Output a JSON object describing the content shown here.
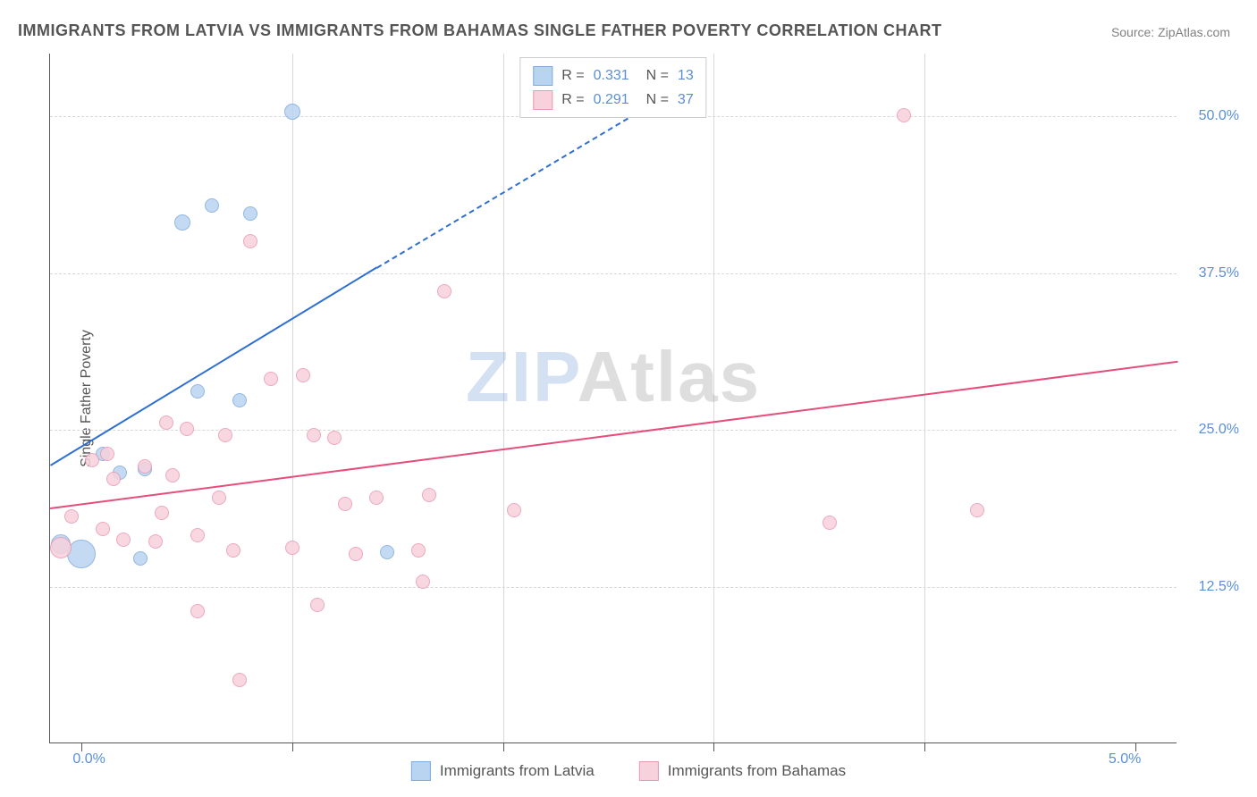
{
  "title": "IMMIGRANTS FROM LATVIA VS IMMIGRANTS FROM BAHAMAS SINGLE FATHER POVERTY CORRELATION CHART",
  "source": "Source: ZipAtlas.com",
  "ylabel": "Single Father Poverty",
  "watermark_a": "ZIP",
  "watermark_b": "Atlas",
  "chart": {
    "type": "scatter",
    "background_color": "#ffffff",
    "grid_color": "#d8d8d8",
    "axis_color": "#555555",
    "xlim": [
      -0.15,
      5.2
    ],
    "ylim": [
      0,
      55
    ],
    "xticks": [
      0.0,
      5.0
    ],
    "xtick_labels": [
      "0.0%",
      "5.0%"
    ],
    "xtick_minor": [
      1.0,
      2.0,
      3.0,
      4.0
    ],
    "yticks": [
      12.5,
      25.0,
      37.5,
      50.0
    ],
    "ytick_labels": [
      "12.5%",
      "25.0%",
      "37.5%",
      "50.0%"
    ],
    "label_fontsize": 16,
    "label_color": "#5a8fd6",
    "marker_size": 16,
    "marker_stroke": 1.5,
    "series": [
      {
        "key": "latvia",
        "label": "Immigrants from Latvia",
        "fill": "#b9d4f0",
        "stroke": "#7fabdd",
        "line_color": "#2e6fd1",
        "R": "0.331",
        "N": "13",
        "trend": {
          "x1": -0.15,
          "y1": 22.2,
          "x2": 1.4,
          "y2": 38.0,
          "x2_dash": 2.7,
          "y2_dash": 51.0
        },
        "points": [
          {
            "x": 0.0,
            "y": 15.0,
            "r": 16
          },
          {
            "x": -0.1,
            "y": 15.8,
            "r": 11
          },
          {
            "x": 0.28,
            "y": 14.7,
            "r": 8
          },
          {
            "x": 0.18,
            "y": 21.5,
            "r": 8
          },
          {
            "x": 0.3,
            "y": 21.8,
            "r": 8
          },
          {
            "x": 1.45,
            "y": 15.2,
            "r": 8
          },
          {
            "x": 0.48,
            "y": 41.5,
            "r": 9
          },
          {
            "x": 0.62,
            "y": 42.8,
            "r": 8
          },
          {
            "x": 0.8,
            "y": 42.2,
            "r": 8
          },
          {
            "x": 1.0,
            "y": 50.3,
            "r": 9
          },
          {
            "x": 0.55,
            "y": 28.0,
            "r": 8
          },
          {
            "x": 0.75,
            "y": 27.3,
            "r": 8
          },
          {
            "x": 0.1,
            "y": 23.0,
            "r": 8
          }
        ]
      },
      {
        "key": "bahamas",
        "label": "Immigrants from Bahamas",
        "fill": "#f7d1dc",
        "stroke": "#e99ab3",
        "line_color": "#e54d7a",
        "R": "0.291",
        "N": "37",
        "trend": {
          "x1": -0.15,
          "y1": 18.8,
          "x2": 5.2,
          "y2": 30.5
        },
        "points": [
          {
            "x": -0.1,
            "y": 15.5,
            "r": 12
          },
          {
            "x": -0.05,
            "y": 18.0,
            "r": 8
          },
          {
            "x": 0.05,
            "y": 22.5,
            "r": 8
          },
          {
            "x": 0.1,
            "y": 17.0,
            "r": 8
          },
          {
            "x": 0.12,
            "y": 23.0,
            "r": 8
          },
          {
            "x": 0.15,
            "y": 21.0,
            "r": 8
          },
          {
            "x": 0.2,
            "y": 16.2,
            "r": 8
          },
          {
            "x": 0.3,
            "y": 22.0,
            "r": 8
          },
          {
            "x": 0.35,
            "y": 16.0,
            "r": 8
          },
          {
            "x": 0.4,
            "y": 25.5,
            "r": 8
          },
          {
            "x": 0.43,
            "y": 21.3,
            "r": 8
          },
          {
            "x": 0.5,
            "y": 25.0,
            "r": 8
          },
          {
            "x": 0.55,
            "y": 16.5,
            "r": 8
          },
          {
            "x": 0.55,
            "y": 10.5,
            "r": 8
          },
          {
            "x": 0.65,
            "y": 19.5,
            "r": 8
          },
          {
            "x": 0.68,
            "y": 24.5,
            "r": 8
          },
          {
            "x": 0.72,
            "y": 15.3,
            "r": 8
          },
          {
            "x": 0.75,
            "y": 5.0,
            "r": 8
          },
          {
            "x": 0.8,
            "y": 40.0,
            "r": 8
          },
          {
            "x": 0.9,
            "y": 29.0,
            "r": 8
          },
          {
            "x": 1.0,
            "y": 15.5,
            "r": 8
          },
          {
            "x": 1.05,
            "y": 29.3,
            "r": 8
          },
          {
            "x": 1.1,
            "y": 24.5,
            "r": 8
          },
          {
            "x": 1.12,
            "y": 11.0,
            "r": 8
          },
          {
            "x": 1.2,
            "y": 24.3,
            "r": 8
          },
          {
            "x": 1.25,
            "y": 19.0,
            "r": 8
          },
          {
            "x": 1.3,
            "y": 15.0,
            "r": 8
          },
          {
            "x": 1.4,
            "y": 19.5,
            "r": 8
          },
          {
            "x": 1.6,
            "y": 15.3,
            "r": 8
          },
          {
            "x": 1.62,
            "y": 12.8,
            "r": 8
          },
          {
            "x": 1.65,
            "y": 19.7,
            "r": 8
          },
          {
            "x": 1.72,
            "y": 36.0,
            "r": 8
          },
          {
            "x": 2.05,
            "y": 18.5,
            "r": 8
          },
          {
            "x": 3.55,
            "y": 17.5,
            "r": 8
          },
          {
            "x": 3.9,
            "y": 50.0,
            "r": 8
          },
          {
            "x": 4.25,
            "y": 18.5,
            "r": 8
          },
          {
            "x": 0.38,
            "y": 18.3,
            "r": 8
          }
        ]
      }
    ]
  }
}
